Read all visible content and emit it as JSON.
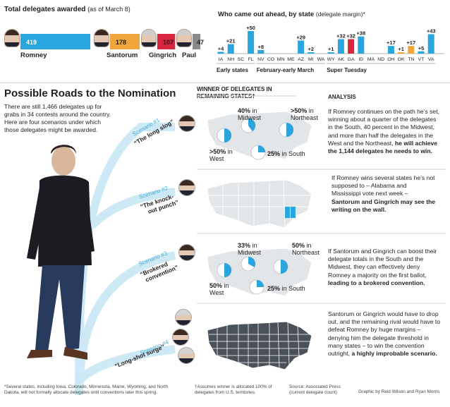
{
  "colors": {
    "romney": "#2aa6de",
    "santorum": "#f0a63c",
    "gingrich": "#d7263d",
    "paul": "#8a8a8a",
    "pie_blue": "#2aa6de",
    "map_light": "#e3e6e8",
    "map_dark": "#4a5158",
    "scenario_path": "#cde9f6"
  },
  "delegates": {
    "title": "Total delegates awarded",
    "note": "(as of March 8)",
    "candidates": [
      {
        "name": "Romney",
        "value": 419,
        "value_label": "419",
        "color": "#2aa6de"
      },
      {
        "name": "Santorum",
        "value": 178,
        "value_label": "178",
        "color": "#f0a63c"
      },
      {
        "name": "Gingrich",
        "value": 107,
        "value_label": "107",
        "color": "#d7263d"
      },
      {
        "name": "Paul",
        "value": 47,
        "value_label": "47",
        "color": "#8a8a8a"
      }
    ]
  },
  "chart_data": [
    {
      "type": "bar",
      "title": "Total delegates awarded (as of March 8)",
      "categories": [
        "Romney",
        "Santorum",
        "Gingrich",
        "Paul"
      ],
      "values": [
        419,
        178,
        107,
        47
      ]
    },
    {
      "type": "bar",
      "title": "Who came out ahead, by state",
      "subtitle": "(delegate margin)*",
      "categories": [
        "IA",
        "NH",
        "SC",
        "FL",
        "NV",
        "CO",
        "MN",
        "ME",
        "AZ",
        "MI",
        "WA",
        "WY",
        "AK",
        "GA",
        "ID",
        "MA",
        "ND",
        "OH",
        "OK",
        "TN",
        "VT",
        "VA"
      ],
      "values": [
        4,
        21,
        0,
        50,
        8,
        0,
        0,
        0,
        29,
        2,
        0,
        1,
        32,
        32,
        38,
        0,
        0,
        17,
        1,
        17,
        5,
        43
      ],
      "bar_labels": [
        "+4",
        "+21",
        "",
        "+50",
        "+8",
        "",
        "",
        "",
        "+29",
        "+2",
        "",
        "+1",
        "+32",
        "+32",
        "+38",
        "",
        "",
        "+17",
        "+1",
        "+17",
        "+5",
        "+43"
      ],
      "bar_colors": [
        "#2aa6de",
        "#2aa6de",
        "#d7263d",
        "#2aa6de",
        "#2aa6de",
        "",
        "",
        "",
        "#2aa6de",
        "#2aa6de",
        "",
        "#2aa6de",
        "#2aa6de",
        "#d7263d",
        "#2aa6de",
        "#2aa6de",
        "",
        "#2aa6de",
        "#f0a63c",
        "#f0a63c",
        "#2aa6de",
        "#2aa6de"
      ],
      "groups": [
        {
          "label": "Early states",
          "from": 0,
          "to": 3
        },
        {
          "label": "February-early March",
          "from": 4,
          "to": 10
        },
        {
          "label": "Super Tuesday",
          "from": 11,
          "to": 21
        }
      ]
    }
  ],
  "roads": {
    "title": "Possible Roads to the Nomination",
    "intro": "There are still 1,466 delegates up for grabs in 34 contests around the country. Here are four scenarios under which those delegates might be awarded.",
    "col_winner": "WINNER OF DELEGATES IN REMAINING STATES†",
    "col_analysis": "ANALYSIS",
    "scenarios": [
      {
        "label": "Scenario #1",
        "name": "“The long slog”",
        "pies": [
          {
            "region": "West",
            "pct": 50,
            "label_pct": ">50%",
            "label_in": "in",
            "label_region": "West"
          },
          {
            "region": "Midwest",
            "pct": 40,
            "label_pct": "40%",
            "label_in": "in",
            "label_region": "Midwest"
          },
          {
            "region": "Northeast",
            "pct": 50,
            "label_pct": ">50%",
            "label_in": "in",
            "label_region": "Northeast"
          },
          {
            "region": "South",
            "pct": 25,
            "label_pct": "25%",
            "label_in": "in",
            "label_region": "South"
          }
        ],
        "analysis_normal": "If Romney continues on the path he’s set, winning about a quarter of the delegates in the South, 40 percent in the Midwest, and more than half the delegates in the West and the Northeast,",
        "analysis_bold": "he will achieve the 1,144 delegates he needs to win."
      },
      {
        "label": "Scenario #2",
        "name": "“The knock-out punch”",
        "analysis_normal": "If Romney wins several states he’s not supposed to – Alabama and Mississippi vote next week –",
        "analysis_bold": "Santorum and Gingrich may see the writing on the wall."
      },
      {
        "label": "Scenario #3",
        "name": "“Brokered convention”",
        "pies": [
          {
            "region": "West",
            "pct": 50,
            "label_pct": "50%",
            "label_in": "in",
            "label_region": "West"
          },
          {
            "region": "Midwest",
            "pct": 33,
            "label_pct": "33%",
            "label_in": "in",
            "label_region": "Midwest"
          },
          {
            "region": "Northeast",
            "pct": 50,
            "label_pct": "50%",
            "label_in": "in",
            "label_region": "Northeast"
          },
          {
            "region": "South",
            "pct": 25,
            "label_pct": "25%",
            "label_in": "in",
            "label_region": "South"
          }
        ],
        "analysis_normal": "If Santorum and Gingrich can boost their delegate totals in the South and the Midwest, they can effectively deny Romney a majority on the first ballot,",
        "analysis_bold": "leading to a brokered convention."
      },
      {
        "label": "Scenario #4",
        "name": "“Long-shot surge”",
        "analysis_normal": "Santorum or Gingrich would have to drop out, and the remaining rival would have to defeat Romney by huge margins – denying him the delegate threshold in many states – to win the convention outright,",
        "analysis_bold": "a highly improbable scenario."
      }
    ]
  },
  "footer": {
    "note1": "*Several states, including Iowa, Colorado, Minnesota, Maine, Wyoming, and North Dakota, will not formally allocate delegates until conventions later this spring.",
    "note2": "†Assumes winner is allocated 100% of delegates from U.S. territories.",
    "source": "Source: Associated Press (current delegate count)",
    "credit": "Graphic by Reid Wilson and Ryan Morris"
  }
}
